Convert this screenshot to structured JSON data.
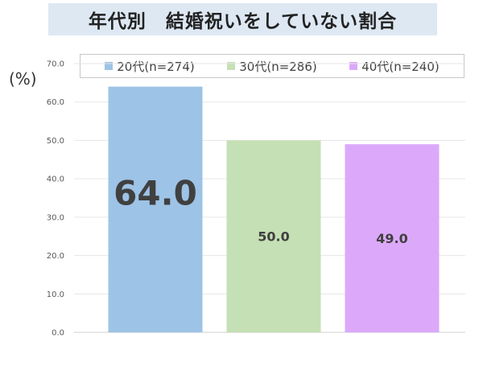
{
  "title": "年代別　結婚祝いをしていない割合",
  "unit_label": "(%)",
  "colors": {
    "title_background": "#dde8f3",
    "grid": "#e6e6e6",
    "axis": "#d0d0d0"
  },
  "chart_data": {
    "type": "bar",
    "title": "年代別　結婚祝いをしていない割合",
    "xlabel": "",
    "ylabel": "(%)",
    "ylim": [
      0,
      70
    ],
    "yticks": [
      "0.0",
      "10.0",
      "20.0",
      "30.0",
      "40.0",
      "50.0",
      "60.0",
      "70.0"
    ],
    "grid": true,
    "legend_position": "top",
    "series": [
      {
        "name": "20代(n=274)",
        "value": 64.0,
        "label": "64.0",
        "color": "#9dc3e6",
        "label_emphasis": true
      },
      {
        "name": "30代(n=286)",
        "value": 50.0,
        "label": "50.0",
        "color": "#c5e0b4",
        "label_emphasis": false
      },
      {
        "name": "40代(n=240)",
        "value": 49.0,
        "label": "49.0",
        "color": "#dca9fa",
        "label_emphasis": false
      }
    ]
  }
}
